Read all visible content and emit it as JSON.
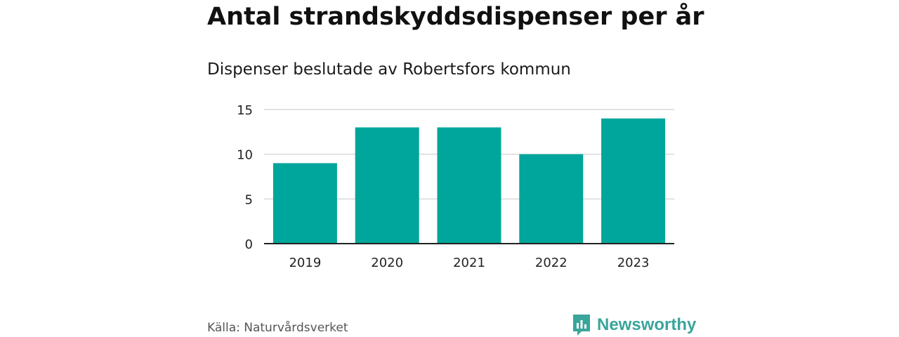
{
  "header": {
    "title": "Antal strandskyddsdispenser per år",
    "subtitle": "Dispenser beslutade av Robertsfors kommun"
  },
  "footer": {
    "source": "Källa: Naturvårdsverket",
    "brand": "Newsworthy",
    "brand_icon": "newsworthy-logo-icon",
    "brand_color": "#3aa59b"
  },
  "chart_data": {
    "type": "bar",
    "categories": [
      "2019",
      "2020",
      "2021",
      "2022",
      "2023"
    ],
    "values": [
      9,
      13,
      13,
      10,
      14
    ],
    "ylim": [
      0,
      15
    ],
    "yticks": [
      "0",
      "5",
      "10",
      "15"
    ],
    "grid": true,
    "bar_color": "#00a59b",
    "xlabel": "",
    "ylabel": ""
  }
}
